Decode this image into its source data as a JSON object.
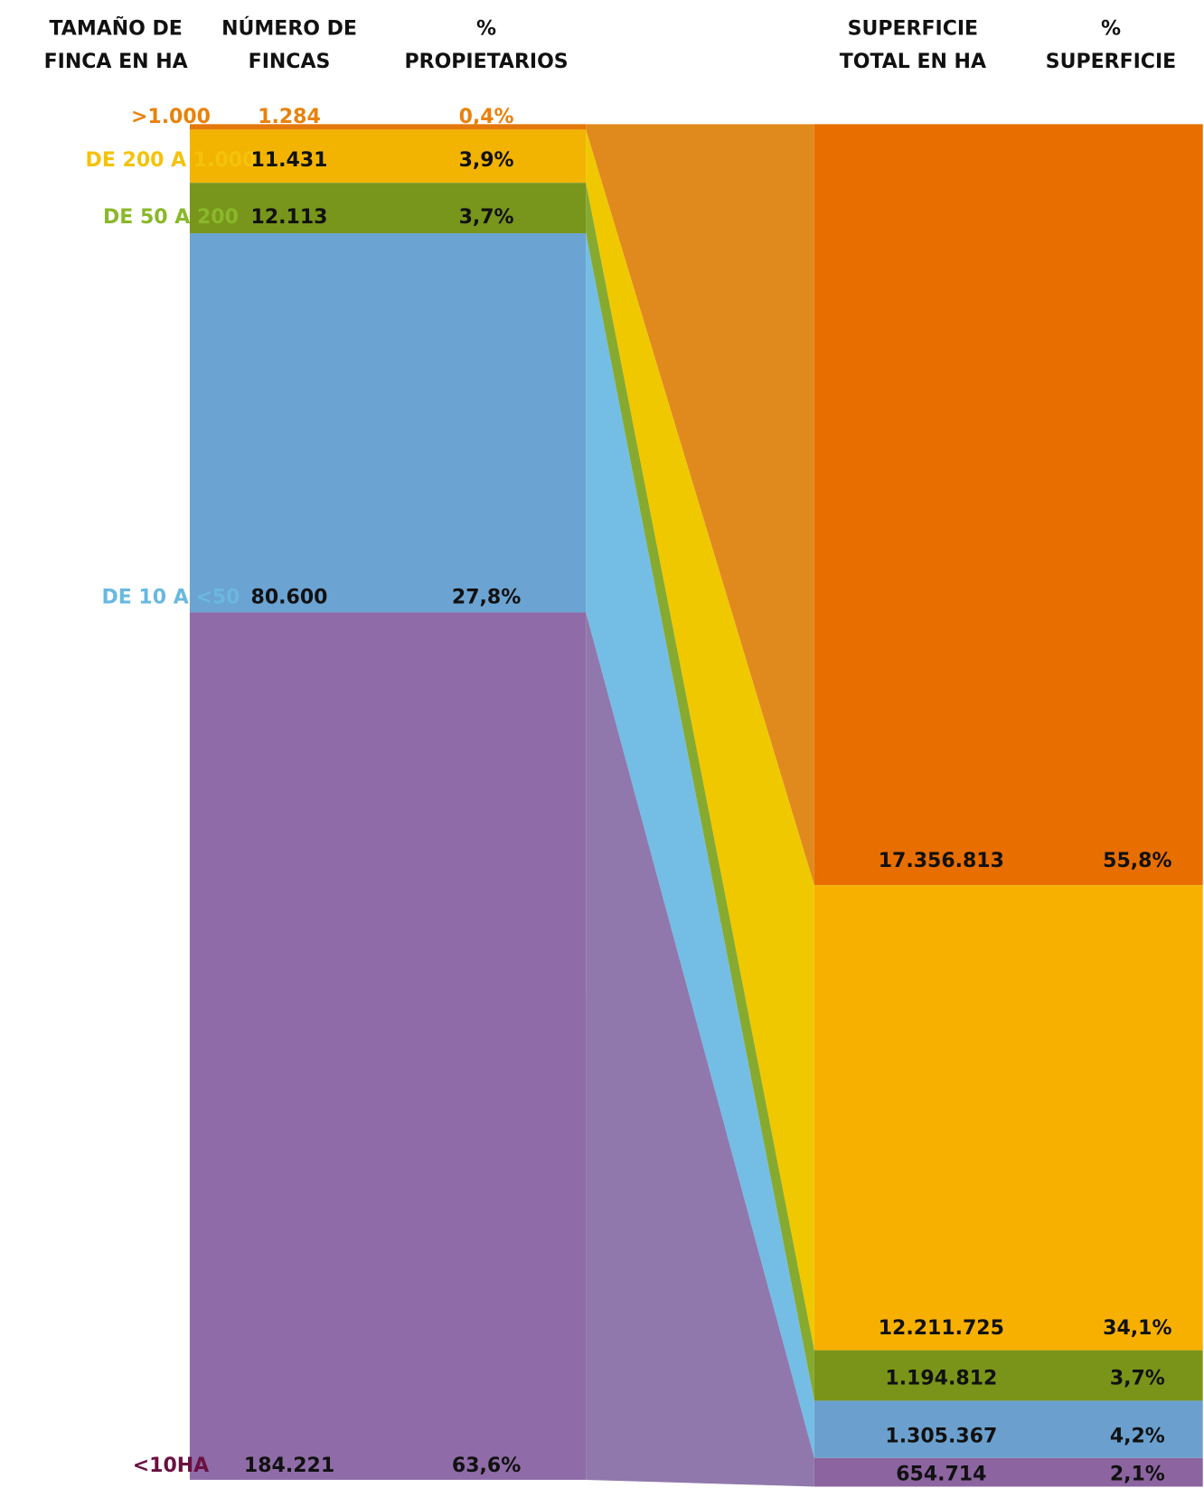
{
  "headers": [
    "TAMAÑO DE FINCA EN HA",
    "NÚMERO DE FINCAS",
    "% PROPIETARIOS",
    "SUPERFICIE TOTAL EN HA",
    "% SUPERFICIE"
  ],
  "header_lines": [
    [
      "TAMAÑO DE",
      "FINCA EN HA"
    ],
    [
      "NÚMERO DE",
      "FINCAS"
    ],
    [
      "%",
      "PROPIETARIOS"
    ],
    [
      "SUPERFICIE",
      "TOTAL EN HA"
    ],
    [
      "%",
      "SUPERFICIE"
    ]
  ],
  "rows": [
    {
      "label": ">1.000",
      "fincas": "1.284",
      "pct_propietarios": {
        "value": 0.4,
        "label": "0,4%"
      },
      "superficie": "17.356.813",
      "pct_superficie": {
        "value": 55.8,
        "label": "55,8%"
      },
      "color": "#e5780a",
      "right_color": "#e86e00",
      "band_color": "#e08a1e",
      "label_color": "#e8820c"
    },
    {
      "label": "DE 200 A 1.000",
      "fincas": "11.431",
      "pct_propietarios": {
        "value": 3.9,
        "label": "3,9%"
      },
      "superficie": "12.211.725",
      "pct_superficie": {
        "value": 34.1,
        "label": "34,1%"
      },
      "color": "#f2b400",
      "right_color": "#f7b000",
      "band_color": "#f0c800",
      "label_color": "#f4c20d"
    },
    {
      "label": "DE 50 A 200",
      "fincas": "12.113",
      "pct_propietarios": {
        "value": 3.7,
        "label": "3,7%"
      },
      "superficie": "1.194.812",
      "pct_superficie": {
        "value": 3.7,
        "label": "3,7%"
      },
      "color": "#78951c",
      "right_color": "#7a941a",
      "band_color": "#86aa30",
      "label_color": "#8ab82a"
    },
    {
      "label": "DE 10 A <50",
      "fincas": "80.600",
      "pct_propietarios": {
        "value": 27.8,
        "label": "27,8%"
      },
      "superficie": "1.305.367",
      "pct_superficie": {
        "value": 4.2,
        "label": "4,2%"
      },
      "color": "#6ba3d2",
      "right_color": "#6ba0ce",
      "band_color": "#74bde4",
      "label_color": "#6ab8e0"
    },
    {
      "label": "<10HA",
      "fincas": "184.221",
      "pct_propietarios": {
        "value": 63.6,
        "label": "63,6%"
      },
      "superficie": "654.714",
      "pct_superficie": {
        "value": 2.1,
        "label": "2,1%"
      },
      "color": "#8f6ca8",
      "right_color": "#8c64a0",
      "band_color": "#9078ac",
      "label_color": "#6b1040"
    }
  ]
}
